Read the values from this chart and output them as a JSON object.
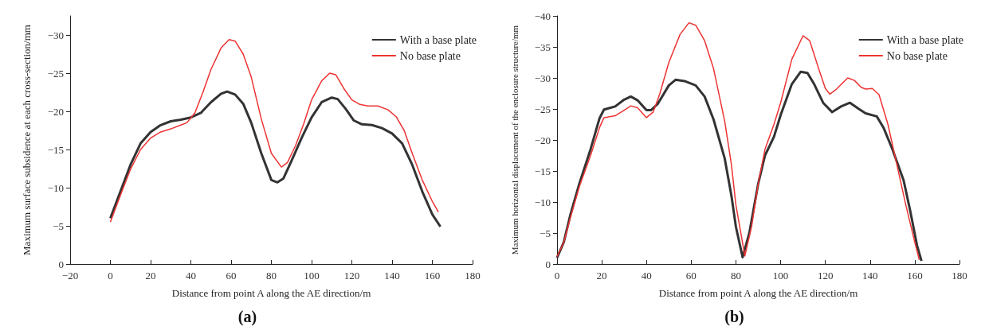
{
  "chart_data": [
    {
      "type": "line",
      "xlabel": "Distance from point A along the AE direction/m",
      "ylabel": "Maximum surface subsidence at each cross-section/mm",
      "annotations": [
        "(a)"
      ],
      "xlim": [
        -20,
        180
      ],
      "xticks": [
        -20,
        0,
        20,
        40,
        60,
        80,
        100,
        120,
        140,
        160,
        180
      ],
      "ylim": [
        0,
        -32.5
      ],
      "yticks": [
        0,
        -5,
        -10,
        -15,
        -20,
        -25,
        -30
      ],
      "grid": false,
      "legend": "top right",
      "marker": "none",
      "line_style": "solid",
      "series": [
        {
          "name": "With a base plate",
          "color": "#333333",
          "x": [
            0,
            5,
            10,
            15,
            20,
            25,
            30,
            35,
            40,
            45,
            50,
            55,
            58,
            62,
            66,
            70,
            75,
            80,
            83,
            86,
            90,
            95,
            100,
            105,
            110,
            113,
            117,
            121,
            125,
            130,
            135,
            140,
            145,
            150,
            155,
            160,
            164
          ],
          "values": [
            -6,
            -9.5,
            -13,
            -15.8,
            -17.3,
            -18.2,
            -18.7,
            -18.9,
            -19.2,
            -19.8,
            -21.2,
            -22.3,
            -22.6,
            -22.2,
            -21,
            -18.5,
            -14.5,
            -11,
            -10.7,
            -11.2,
            -13.5,
            -16.5,
            -19.2,
            -21.2,
            -21.8,
            -21.6,
            -20.3,
            -18.8,
            -18.3,
            -18.2,
            -17.8,
            -17.1,
            -15.8,
            -13,
            -9.5,
            -6.5,
            -4.9
          ]
        },
        {
          "name": "No base plate",
          "color": "#ee3333",
          "x": [
            0,
            5,
            10,
            15,
            20,
            25,
            30,
            35,
            38,
            42,
            46,
            50,
            55,
            59,
            62,
            66,
            70,
            75,
            80,
            85,
            88,
            92,
            96,
            100,
            105,
            109,
            112,
            116,
            120,
            124,
            128,
            133,
            138,
            142,
            146,
            150,
            155,
            160,
            163
          ],
          "values": [
            -5.5,
            -9,
            -12.4,
            -15,
            -16.5,
            -17.3,
            -17.7,
            -18.2,
            -18.5,
            -19.8,
            -22.5,
            -25.5,
            -28.3,
            -29.4,
            -29.2,
            -27.5,
            -24.5,
            -19,
            -14.5,
            -12.7,
            -13.3,
            -15.5,
            -18.3,
            -21.5,
            -24,
            -25,
            -24.8,
            -23,
            -21.5,
            -20.9,
            -20.7,
            -20.7,
            -20.2,
            -19.3,
            -17.5,
            -14.5,
            -11,
            -8.2,
            -6.8
          ]
        }
      ]
    },
    {
      "type": "line",
      "xlabel": "Distance from point A along the AE direction/m",
      "ylabel": "Maximum horizontal displacement of the enclosure structure/mm",
      "annotations": [
        "(b)"
      ],
      "xlim": [
        0,
        180
      ],
      "xticks": [
        0,
        20,
        40,
        60,
        80,
        100,
        120,
        140,
        160,
        180
      ],
      "ylim": [
        0,
        -40
      ],
      "yticks": [
        0,
        -5,
        -10,
        -15,
        -20,
        -25,
        -30,
        -35,
        -40
      ],
      "grid": false,
      "legend": "top right",
      "marker": "none",
      "line_style": "solid",
      "series": [
        {
          "name": "With a base plate",
          "color": "#333333",
          "x": [
            0,
            3,
            6,
            10,
            15,
            19,
            21,
            26,
            30,
            33,
            36,
            40,
            42,
            45,
            50,
            53,
            57,
            62,
            66,
            70,
            75,
            78,
            80,
            83,
            86,
            90,
            93,
            97,
            100,
            105,
            109,
            112,
            115,
            119,
            123,
            127,
            131,
            135,
            138,
            143,
            146,
            150,
            155,
            158,
            161,
            163
          ],
          "values": [
            -1,
            -3.5,
            -8,
            -13,
            -18.5,
            -23.5,
            -24.9,
            -25.4,
            -26.5,
            -27,
            -26.4,
            -24.8,
            -24.8,
            -25.8,
            -28.8,
            -29.7,
            -29.5,
            -28.8,
            -27,
            -23.3,
            -17,
            -11,
            -6,
            -1.1,
            -5,
            -13,
            -17.5,
            -20.5,
            -24,
            -29,
            -31,
            -30.8,
            -29,
            -26,
            -24.5,
            -25.4,
            -26,
            -25,
            -24.3,
            -23.8,
            -22,
            -18.5,
            -13.5,
            -8.5,
            -3,
            -0.5
          ]
        },
        {
          "name": "No base plate",
          "color": "#ee3333",
          "x": [
            0,
            3,
            6,
            10,
            15,
            19,
            21,
            26,
            30,
            33,
            36,
            40,
            43,
            46,
            50,
            55,
            59,
            62,
            66,
            70,
            75,
            78,
            80,
            84,
            87,
            90,
            93,
            97,
            100,
            105,
            110,
            113,
            117,
            120,
            122,
            125,
            130,
            133,
            136,
            138,
            141,
            144,
            148,
            152,
            156,
            160,
            162
          ],
          "values": [
            -1.2,
            -3.5,
            -7.5,
            -12.5,
            -17.5,
            -22,
            -23.6,
            -23.9,
            -24.8,
            -25.5,
            -25.2,
            -23.6,
            -24.5,
            -27.5,
            -32.5,
            -37,
            -38.9,
            -38.5,
            -36,
            -31.5,
            -23,
            -16,
            -9.5,
            -1.3,
            -6,
            -13,
            -18.5,
            -22.5,
            -26,
            -33,
            -36.8,
            -36,
            -31.5,
            -28.3,
            -27.4,
            -28.2,
            -30,
            -29.6,
            -28.5,
            -28.2,
            -28.3,
            -27.3,
            -22.5,
            -16,
            -9.5,
            -3.5,
            -0.7
          ]
        }
      ]
    }
  ]
}
